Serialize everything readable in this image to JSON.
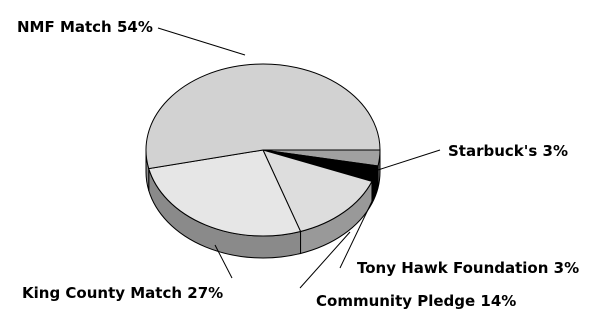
{
  "chart_data": {
    "type": "pie",
    "style": "3d-tilted",
    "title": "",
    "slices": [
      {
        "label": "NMF Match 54%",
        "value": 54,
        "color": "#d2d2d2",
        "side_color": "#8c8c8c"
      },
      {
        "label": "Starbuck's 3%",
        "value": 3,
        "color": "#a0a0a0",
        "side_color": "#6e6e6e"
      },
      {
        "label": "Tony Hawk Foundation 3%",
        "value": 3,
        "color": "#000000",
        "side_color": "#000000"
      },
      {
        "label": "Community Pledge 14%",
        "value": 14,
        "color": "#dddddd",
        "side_color": "#999999"
      },
      {
        "label": "King County Match 27%",
        "value": 27,
        "color": "#e6e6e6",
        "side_color": "#8a8a8a"
      }
    ]
  }
}
